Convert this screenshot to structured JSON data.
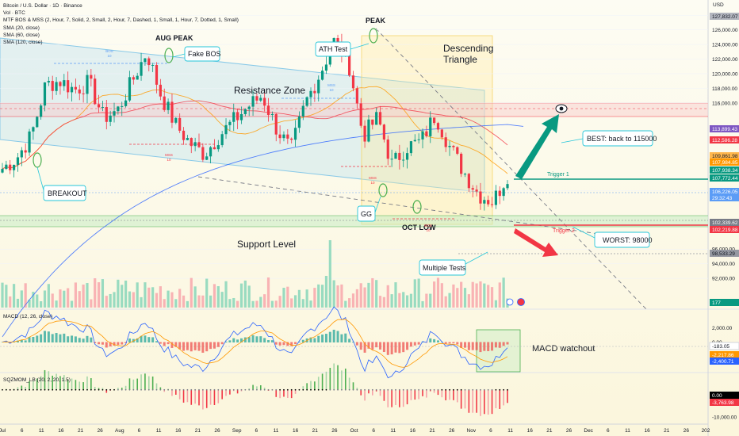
{
  "header": {
    "title": "Bitcoin / U.S. Dollar · 1D · Binance",
    "currency": "USD",
    "indicators": [
      "Vol · BTC",
      "MTF BOS & MSS (2, Hour, 7, Solid, 2, Small, 2, Hour, 7, Dashed, 1, Small, 1, Hour, 7, Dotted, 1, Small)",
      "SMA (20, close)",
      "SMA (60, close)",
      "SMA (120, close)"
    ]
  },
  "price_axis": {
    "ticks": [
      "128,000.00",
      "126,000.00",
      "124,000.00",
      "122,000.00",
      "120,000.00",
      "118,000.00",
      "116,000.00",
      "104,000.00",
      "96,000.00",
      "94,000.00",
      "92,000.00"
    ]
  },
  "price_badges": [
    {
      "value": "127,832.07",
      "color": "#b2b5be"
    },
    {
      "value": "113,899.43",
      "color": "#7e57c2"
    },
    {
      "value": "112,586.28",
      "color": "#f23645"
    },
    {
      "value": "109,861.98",
      "color": "#ffb74d"
    },
    {
      "value": "107,984.85",
      "color": "#ff9800"
    },
    {
      "value": "107,938.34",
      "color": "#089981"
    },
    {
      "value": "107,772.44",
      "color": "#089981"
    },
    {
      "value": "106,226.05",
      "color": "#5b9cf6"
    },
    {
      "value": "29:32:43",
      "color": "#5b9cf6"
    },
    {
      "value": "102,339.62",
      "color": "#787b86"
    },
    {
      "value": "102,219.88",
      "color": "#f23645"
    },
    {
      "value": "98,533.29",
      "color": "#9598a1"
    },
    {
      "value": "177",
      "color": "#089981"
    }
  ],
  "time_axis": {
    "labels": [
      "Jul",
      "6",
      "11",
      "16",
      "21",
      "26",
      "Aug",
      "6",
      "11",
      "16",
      "21",
      "26",
      "Sep",
      "6",
      "11",
      "16",
      "21",
      "26",
      "Oct",
      "6",
      "11",
      "16",
      "21",
      "26",
      "Nov",
      "6",
      "11",
      "16",
      "21",
      "26",
      "Dec",
      "6",
      "11",
      "16",
      "21",
      "26",
      "202"
    ]
  },
  "annotations": {
    "aug_peak": "AUG PEAK",
    "fake_bos": "Fake BOS",
    "peak": "PEAK",
    "ath_test": "ATH Test",
    "descending_triangle": "Descending\nTriangle",
    "resistance_zone": "Resistance Zone",
    "support_level": "Support Level",
    "breakout": "BREAKOUT",
    "gg": "GG",
    "oct_low": "OCT LOW",
    "multiple_tests": "Multiple Tests",
    "best": "BEST: back to 115000",
    "worst": "WORST: 98000",
    "trigger1": "Trigger 1",
    "trigger2": "Trigger 2",
    "bos1": "BOS\n10",
    "mss1": "MSS\n10",
    "mss2": "MSS\n10",
    "mss3": "MSS\n10",
    "bos2": "BOS\n10",
    "macd_watchout": "MACD watchout"
  },
  "macd": {
    "label": "MACD (12, 26, close)",
    "ticks": [
      "2,000.00",
      "0.00",
      "-2,000.00"
    ],
    "badges": [
      {
        "value": "-183.05",
        "color": "#ffffff"
      },
      {
        "value": "-2,217.86",
        "color": "#ff9800"
      },
      {
        "value": "-2,400.71",
        "color": "#2962ff"
      }
    ]
  },
  "sqzmom": {
    "label": "SQZMOM_LB (20, 2, 20, 1.5)",
    "ticks": [
      "-10,000.00"
    ],
    "badges": [
      {
        "value": "0.00",
        "color": "#000000"
      },
      {
        "value": "-3,763.98",
        "color": "#f23645"
      }
    ]
  },
  "chart_data": {
    "type": "candlestick",
    "symbol": "BTCUSD",
    "interval": "1D",
    "x": [
      "Jul 1",
      "Jul 5",
      "Jul 10",
      "Jul 14",
      "Jul 18",
      "Jul 22",
      "Jul 26",
      "Aug 1",
      "Aug 5",
      "Aug 10",
      "Aug 14",
      "Aug 18",
      "Aug 22",
      "Aug 26",
      "Sep 1",
      "Sep 5",
      "Sep 10",
      "Sep 14",
      "Sep 18",
      "Sep 22",
      "Sep 26",
      "Oct 1",
      "Oct 3",
      "Oct 6",
      "Oct 8",
      "Oct 10",
      "Oct 14",
      "Oct 17",
      "Oct 21",
      "Oct 24",
      "Oct 27",
      "Oct 31",
      "Nov 3",
      "Nov 5",
      "Nov 8",
      "Nov 10"
    ],
    "close": [
      107000,
      108500,
      111500,
      118500,
      119000,
      117800,
      118800,
      114000,
      115000,
      119000,
      123000,
      117000,
      113000,
      110500,
      109000,
      111500,
      113500,
      115500,
      117000,
      112500,
      109500,
      116000,
      120000,
      124500,
      121500,
      111500,
      114000,
      107500,
      110000,
      110700,
      114400,
      110000,
      106500,
      103500,
      102500,
      106200
    ],
    "ylim": [
      88000,
      129000
    ],
    "macd_panel": {
      "ylim": [
        -4000,
        4000
      ]
    },
    "sqzmom_panel": {
      "ylim": [
        -12000,
        4000
      ]
    }
  }
}
